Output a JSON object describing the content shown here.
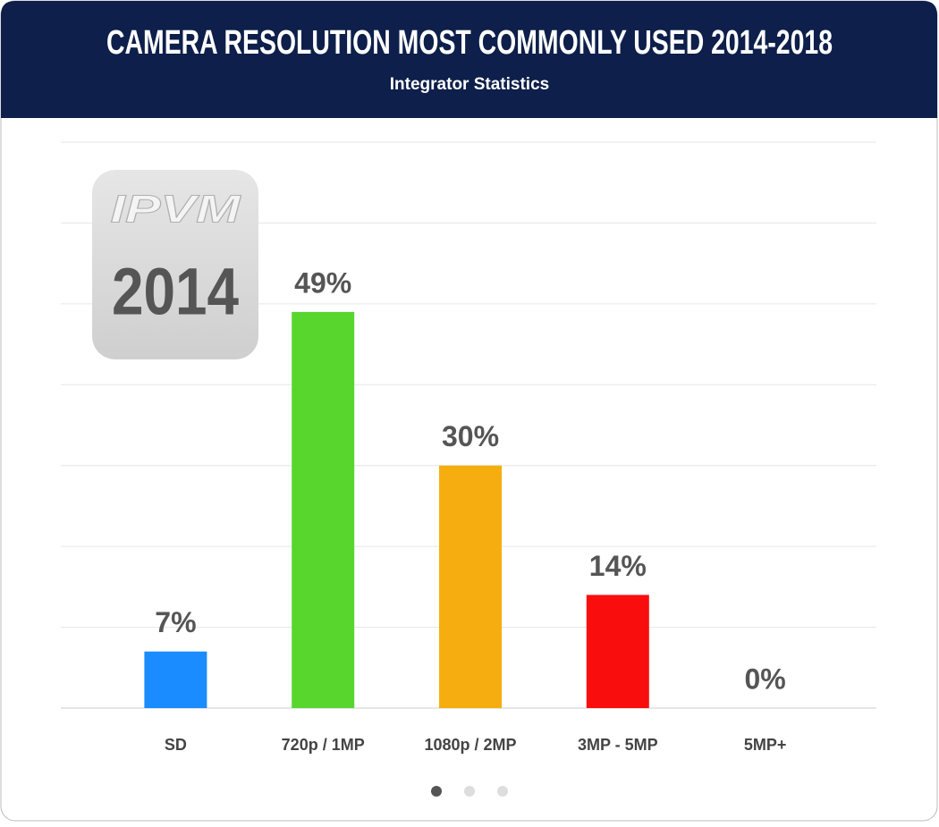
{
  "chart_data": {
    "type": "bar",
    "title": "CAMERA RESOLUTION MOST COMMONLY USED 2014-2018",
    "subtitle": "Integrator Statistics",
    "categories": [
      "SD",
      "720p / 1MP",
      "1080p / 2MP",
      "3MP - 5MP",
      "5MP+"
    ],
    "values": [
      7,
      49,
      30,
      14,
      0
    ],
    "value_labels": [
      "7%",
      "49%",
      "30%",
      "14%",
      "0%"
    ],
    "colors": [
      "#1a8cff",
      "#58d62e",
      "#f5ad0f",
      "#fa0d0d",
      "#999999"
    ],
    "ylim": [
      0,
      70
    ],
    "yticks": [
      0,
      10,
      20,
      30,
      40,
      50,
      60,
      70
    ],
    "grid": true
  },
  "badge": {
    "logo": "IPVM",
    "year": "2014"
  }
}
